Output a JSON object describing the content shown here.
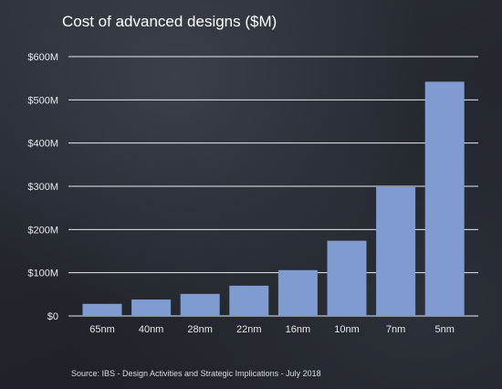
{
  "chart_data": {
    "type": "bar",
    "title": "Cost of advanced designs ($M)",
    "categories": [
      "65nm",
      "40nm",
      "28nm",
      "22nm",
      "16nm",
      "10nm",
      "7nm",
      "5nm"
    ],
    "values": [
      28,
      38,
      51,
      70,
      106,
      174,
      298,
      542
    ],
    "y_ticks": [
      "$0",
      "$100M",
      "$200M",
      "$300M",
      "$400M",
      "$500M",
      "$600M"
    ],
    "ylim": [
      0,
      600
    ],
    "grid": true,
    "legend": "none",
    "bar_color": "#7f9bcf",
    "source": "Source: IBS - Design Activities and Strategic Implications - July 2018"
  }
}
